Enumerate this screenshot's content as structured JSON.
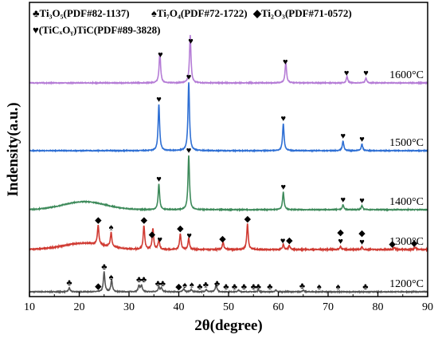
{
  "chart_data": {
    "type": "line",
    "xlabel": "2θ(degree)",
    "ylabel": "Indensity(a.u.)",
    "xlim": [
      10,
      90
    ],
    "x_ticks": [
      "10",
      "20",
      "30",
      "40",
      "50",
      "60",
      "70",
      "80",
      "90"
    ],
    "y_ticks_shown": false,
    "grid": false,
    "legend": {
      "placement": "top-left",
      "entries": [
        {
          "symbol": "♣",
          "phase": "Ti3O5",
          "label": "Ti₃O₅(PDF#82-1137)"
        },
        {
          "symbol": "♠",
          "phase": "Ti7O4",
          "label": "Ti₇O₄(PDF#72-1722)"
        },
        {
          "symbol": "◆",
          "phase": "Ti2O3",
          "label": "Ti₂O₃(PDF#71-0572)"
        },
        {
          "symbol": "♥",
          "phase": "TiC",
          "label": "(TiCₓOᵧ)TiC(PDF#89-3828)"
        }
      ]
    },
    "series": [
      {
        "name": "1200°C",
        "color": "#555555",
        "baseline": 6,
        "noise": 0.5,
        "peaks": [
          [
            18,
            5
          ],
          [
            25,
            25
          ],
          [
            26.5,
            15
          ],
          [
            32,
            8
          ],
          [
            32.5,
            8
          ],
          [
            36,
            6
          ],
          [
            36.5,
            5
          ],
          [
            41,
            4
          ],
          [
            42.5,
            3
          ],
          [
            45.5,
            3
          ],
          [
            47.5,
            9
          ],
          [
            52,
            2
          ],
          [
            56,
            2
          ],
          [
            59.5,
            2
          ],
          [
            65,
            2
          ]
        ],
        "markers": [
          {
            "x": 18,
            "symbols": "♣"
          },
          {
            "x": 23.8,
            "symbols": "◆"
          },
          {
            "x": 25,
            "symbols": "♣"
          },
          {
            "x": 26.4,
            "symbols": "♠"
          },
          {
            "x": 32.5,
            "symbols": "♣♣"
          },
          {
            "x": 36.3,
            "symbols": "♣♣"
          },
          {
            "x": 40,
            "symbols": "◆"
          },
          {
            "x": 41.2,
            "symbols": "♠"
          },
          {
            "x": 42.6,
            "symbols": "♠"
          },
          {
            "x": 44.2,
            "symbols": "♣"
          },
          {
            "x": 45.4,
            "symbols": "♣"
          },
          {
            "x": 47.7,
            "symbols": "♣"
          },
          {
            "x": 49.5,
            "symbols": "♣"
          },
          {
            "x": 51.2,
            "symbols": "♣"
          },
          {
            "x": 53.1,
            "symbols": "♣"
          },
          {
            "x": 55.5,
            "symbols": "♣♣"
          },
          {
            "x": 58.3,
            "symbols": "♣"
          },
          {
            "x": 64.8,
            "symbols": "♣"
          },
          {
            "x": 68.2,
            "symbols": "♠"
          },
          {
            "x": 72,
            "symbols": "♠"
          },
          {
            "x": 77.5,
            "symbols": "♣"
          }
        ]
      },
      {
        "name": "1300°C",
        "color": "#d03a32",
        "baseline": 59,
        "noise": 0.7,
        "hump": [
          21,
          8,
          6
        ],
        "peaks": [
          [
            23.8,
            24
          ],
          [
            26.4,
            18
          ],
          [
            33,
            30
          ],
          [
            34.8,
            26
          ],
          [
            36,
            12
          ],
          [
            40.3,
            20
          ],
          [
            42,
            14
          ],
          [
            48.9,
            9
          ],
          [
            53.8,
            32
          ],
          [
            61,
            6
          ],
          [
            62.2,
            5
          ],
          [
            72.5,
            4
          ],
          [
            76.8,
            3
          ],
          [
            83.3,
            3
          ],
          [
            87.5,
            3
          ]
        ],
        "markers": [
          {
            "x": 23.8,
            "symbols": "◆"
          },
          {
            "x": 26.4,
            "symbols": "♠"
          },
          {
            "x": 33,
            "symbols": "◆"
          },
          {
            "x": 34.6,
            "symbols": "◆"
          },
          {
            "x": 36.2,
            "symbols": "♥"
          },
          {
            "x": 40.3,
            "symbols": "◆"
          },
          {
            "x": 42.1,
            "symbols": "♥"
          },
          {
            "x": 48.8,
            "symbols": "◆"
          },
          {
            "x": 53.8,
            "symbols": "◆"
          },
          {
            "x": 60.9,
            "symbols": "♥"
          },
          {
            "x": 62.2,
            "symbols": "◆"
          },
          {
            "x": 72.5,
            "symbols": "♥◆"
          },
          {
            "x": 76.8,
            "symbols": "♥◆"
          },
          {
            "x": 82.9,
            "symbols": "◆"
          },
          {
            "x": 87.3,
            "symbols": "◆"
          }
        ]
      },
      {
        "name": "1400°C",
        "color": "#3d8a5a",
        "baseline": 109,
        "noise": 0.5,
        "hump": [
          21,
          10,
          6
        ],
        "peaks": [
          [
            36,
            32
          ],
          [
            42,
            68
          ],
          [
            61,
            22
          ],
          [
            73,
            6
          ],
          [
            76.8,
            5
          ]
        ],
        "markers": [
          {
            "x": 36,
            "symbols": "♥"
          },
          {
            "x": 42,
            "symbols": "♥"
          },
          {
            "x": 61,
            "symbols": "♥"
          },
          {
            "x": 73,
            "symbols": "♥"
          },
          {
            "x": 76.8,
            "symbols": "♥"
          }
        ]
      },
      {
        "name": "1500°C",
        "color": "#2e6fd4",
        "baseline": 183,
        "noise": 0.5,
        "peaks": [
          [
            36,
            58
          ],
          [
            42,
            86
          ],
          [
            61,
            34
          ],
          [
            73,
            12
          ],
          [
            76.8,
            8
          ]
        ],
        "markers": [
          {
            "x": 36,
            "symbols": "♥"
          },
          {
            "x": 42,
            "symbols": "♥"
          },
          {
            "x": 61,
            "symbols": "♥"
          },
          {
            "x": 73,
            "symbols": "♥"
          },
          {
            "x": 76.8,
            "symbols": "♥"
          }
        ]
      },
      {
        "name": "1600°C",
        "color": "#b57cd6",
        "baseline": 268,
        "noise": 0.5,
        "peaks": [
          [
            36.2,
            38
          ],
          [
            42.3,
            60
          ],
          [
            61.5,
            26
          ],
          [
            73.8,
            8
          ],
          [
            77.6,
            6
          ]
        ],
        "markers": [
          {
            "x": 36.3,
            "symbols": "♥"
          },
          {
            "x": 42.4,
            "symbols": "♥"
          },
          {
            "x": 61.4,
            "symbols": "♥"
          },
          {
            "x": 73.7,
            "symbols": "♥"
          },
          {
            "x": 77.6,
            "symbols": "♥"
          }
        ]
      }
    ]
  }
}
